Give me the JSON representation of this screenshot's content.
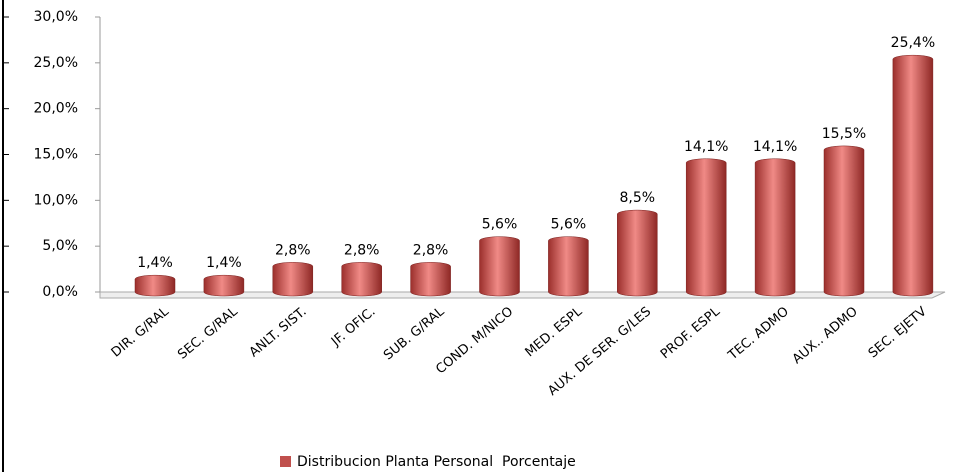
{
  "chart_data": {
    "type": "bar",
    "categories": [
      "DIR. G/RAL",
      "SEC. G/RAL",
      "ANLT. SIST.",
      "JF. OFIC.",
      "SUB. G/RAL",
      "COND. M/NICO",
      "MED. ESPL",
      "AUX. DE SER. G/LES",
      "PROF. ESPL",
      "TEC. ADMO",
      "AUX.. ADMO",
      "SEC. EJETV"
    ],
    "series": [
      {
        "name": "Distribucion Planta Personal  Porcentaje",
        "color": "#c0504d",
        "values": [
          1.4,
          1.4,
          2.8,
          2.8,
          2.8,
          5.6,
          5.6,
          8.5,
          14.1,
          14.1,
          15.5,
          25.4
        ],
        "value_labels": [
          "1,4%",
          "1,4%",
          "2,8%",
          "2,8%",
          "2,8%",
          "5,6%",
          "5,6%",
          "8,5%",
          "14,1%",
          "14,1%",
          "15,5%",
          "25,4%"
        ]
      }
    ],
    "ylim": [
      0,
      30
    ],
    "yticks": [
      {
        "value": 0,
        "label": "0,0%"
      },
      {
        "value": 5,
        "label": "5,0%"
      },
      {
        "value": 10,
        "label": "10,0%"
      },
      {
        "value": 15,
        "label": "15,0%"
      },
      {
        "value": 20,
        "label": "20,0%"
      },
      {
        "value": 25,
        "label": "25,0%"
      },
      {
        "value": 30,
        "label": "30,0%"
      }
    ],
    "legend": "bottom"
  }
}
